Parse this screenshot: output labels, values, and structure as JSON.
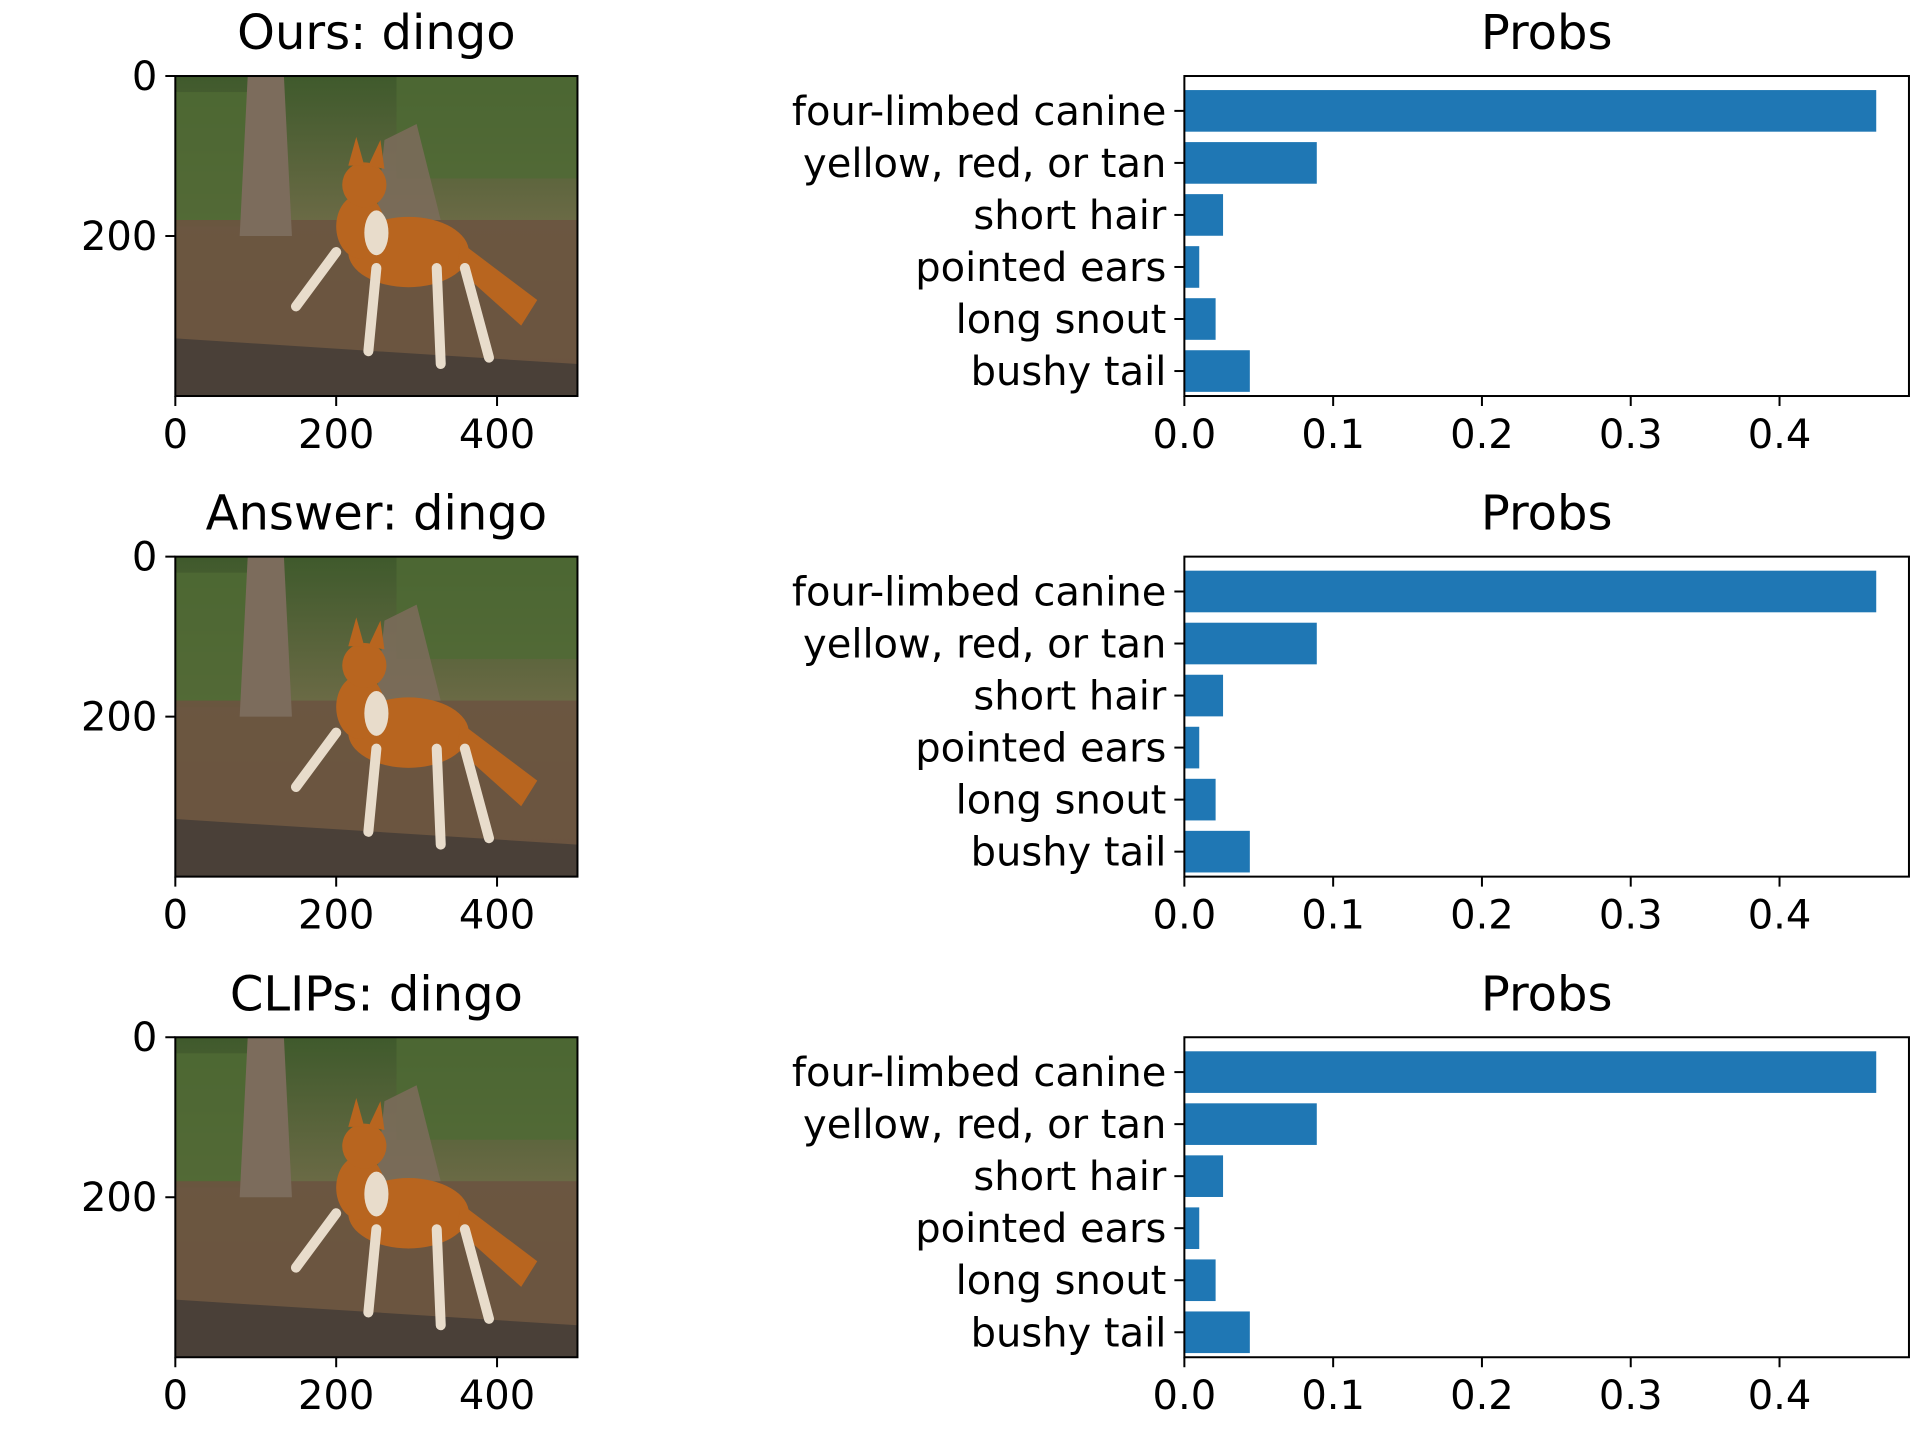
{
  "bar_color": "#1f77b4",
  "image_colors": {
    "foliage": "#4f6a34",
    "ground": "#6b5440",
    "trunk": "#7c6c5c",
    "dog": "#b8651f",
    "dog_light": "#e8dccb",
    "log": "#4a4038"
  },
  "rows": [
    {
      "image_title": "Ours: dingo",
      "image_axes": {
        "x_ticks": [
          "0",
          "200",
          "400"
        ],
        "y_ticks": [
          "0",
          "200"
        ],
        "x_range": [
          0,
          500
        ],
        "y_range": [
          0,
          400
        ]
      }
    },
    {
      "image_title": "Answer: dingo",
      "image_axes": {
        "x_ticks": [
          "0",
          "200",
          "400"
        ],
        "y_ticks": [
          "0",
          "200"
        ],
        "x_range": [
          0,
          500
        ],
        "y_range": [
          0,
          400
        ]
      }
    },
    {
      "image_title": "CLIPs: dingo",
      "image_axes": {
        "x_ticks": [
          "0",
          "200",
          "400"
        ],
        "y_ticks": [
          "0",
          "200"
        ],
        "x_range": [
          0,
          500
        ],
        "y_range": [
          0,
          400
        ]
      }
    }
  ],
  "chart_data": [
    {
      "type": "bar",
      "orientation": "horizontal",
      "title": "Probs",
      "categories": [
        "four-limbed canine",
        "yellow, red, or tan",
        "short hair",
        "pointed ears",
        "long snout",
        "bushy tail"
      ],
      "values": [
        0.465,
        0.089,
        0.026,
        0.01,
        0.021,
        0.044
      ],
      "xlim": [
        0,
        0.487
      ],
      "xticks": [
        "0.0",
        "0.1",
        "0.2",
        "0.3",
        "0.4"
      ],
      "grid": false
    },
    {
      "type": "bar",
      "orientation": "horizontal",
      "title": "Probs",
      "categories": [
        "four-limbed canine",
        "yellow, red, or tan",
        "short hair",
        "pointed ears",
        "long snout",
        "bushy tail"
      ],
      "values": [
        0.465,
        0.089,
        0.026,
        0.01,
        0.021,
        0.044
      ],
      "xlim": [
        0,
        0.487
      ],
      "xticks": [
        "0.0",
        "0.1",
        "0.2",
        "0.3",
        "0.4"
      ],
      "grid": false
    },
    {
      "type": "bar",
      "orientation": "horizontal",
      "title": "Probs",
      "categories": [
        "four-limbed canine",
        "yellow, red, or tan",
        "short hair",
        "pointed ears",
        "long snout",
        "bushy tail"
      ],
      "values": [
        0.465,
        0.089,
        0.026,
        0.01,
        0.021,
        0.044
      ],
      "xlim": [
        0,
        0.487
      ],
      "xticks": [
        "0.0",
        "0.1",
        "0.2",
        "0.3",
        "0.4"
      ],
      "grid": false
    }
  ]
}
